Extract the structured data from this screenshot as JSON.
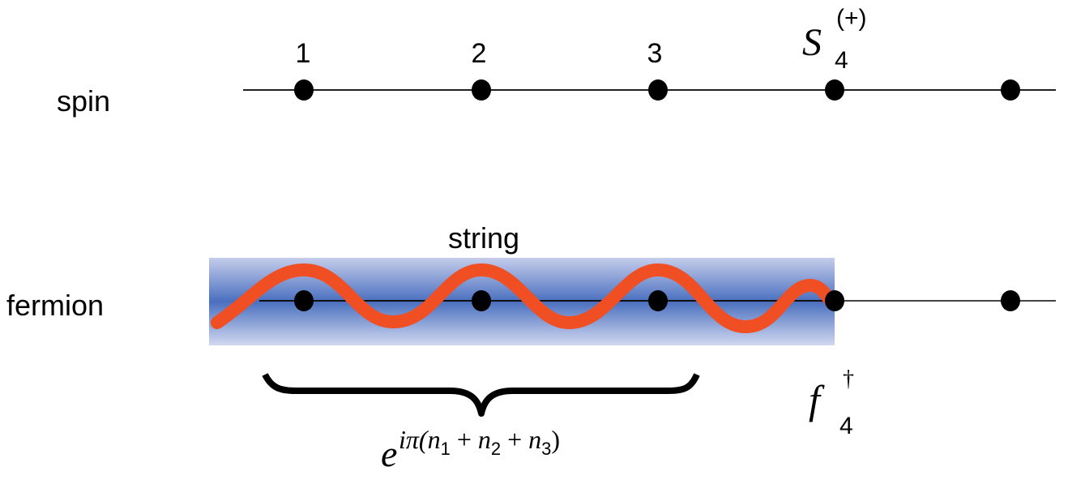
{
  "rows": {
    "spin_label": "spin",
    "fermion_label": "fermion"
  },
  "site_labels": [
    "1",
    "2",
    "3"
  ],
  "spin_operator": {
    "base": "S",
    "subscript": "4",
    "superscript": "(+)"
  },
  "string_label": "string",
  "fermion_operator": {
    "base": "f",
    "subscript": "4",
    "superscript": "†"
  },
  "phase": {
    "base": "e",
    "exponent_prefix": "iπ(",
    "terms": [
      "n",
      "1",
      " + ",
      "n",
      "2",
      " + ",
      "n",
      "3"
    ],
    "exponent_suffix": ")"
  },
  "sites": 5,
  "colors": {
    "string_wave": "#f04e23",
    "string_band": "#4a6fbf",
    "sites": "#000000"
  }
}
